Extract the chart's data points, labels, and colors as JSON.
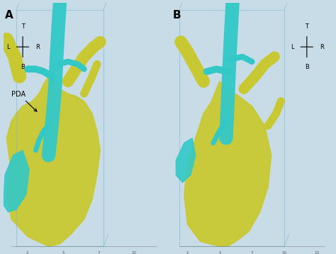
{
  "fig_width": 4.74,
  "fig_height": 3.58,
  "dpi": 100,
  "background_color": "#c8dce8",
  "panel_A_label": "A",
  "panel_B_label": "B",
  "panel_A_annotation": "PDA",
  "label_fontsize": 11,
  "annotation_fontsize": 8,
  "ruler_color": "#555555",
  "compass_A": {
    "T": "T",
    "L": "L",
    "R": "R",
    "B": "B"
  },
  "compass_B": {
    "T": "T",
    "L": "L",
    "R": "R",
    "B": "B"
  },
  "yellow_color": "#c8c832",
  "cyan_color": "#32c8c8",
  "box_color": "#88bbcc",
  "ruler_numbers_A": [
    "2",
    "5",
    "7",
    "10"
  ],
  "ruler_numbers_B": [
    "2",
    "5",
    "7",
    "10",
    "13"
  ],
  "title": ""
}
